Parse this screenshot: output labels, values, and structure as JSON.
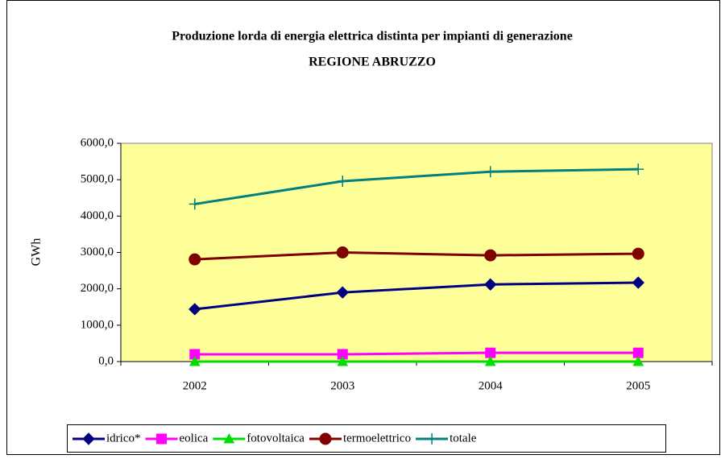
{
  "chart_data": {
    "type": "line",
    "title": "Produzione lorda di energia elettrica distinta per impianti di generazione",
    "subtitle": "REGIONE ABRUZZO",
    "y_label": "GWh",
    "categories": [
      "2002",
      "2003",
      "2004",
      "2005"
    ],
    "series": [
      {
        "name": "idrico*",
        "color": "#000080",
        "marker": "diamond",
        "values": [
          1440,
          1900,
          2120,
          2170
        ]
      },
      {
        "name": "eolica",
        "color": "#ff00ff",
        "marker": "square",
        "values": [
          200,
          200,
          240,
          240
        ]
      },
      {
        "name": "fotovoltaica",
        "color": "#00dd00",
        "marker": "triangle",
        "values": [
          0,
          0,
          0,
          0
        ]
      },
      {
        "name": "termoelettrico",
        "color": "#800000",
        "marker": "circle",
        "values": [
          2810,
          3000,
          2920,
          2965
        ]
      },
      {
        "name": "totale",
        "color": "#008080",
        "marker": "plus",
        "values": [
          4330,
          4960,
          5220,
          5290
        ]
      }
    ],
    "ylim": [
      0,
      6000
    ],
    "yticks": [
      {
        "value": 0,
        "label": "0,0"
      },
      {
        "value": 1000,
        "label": "1000,0"
      },
      {
        "value": 2000,
        "label": "2000,0"
      },
      {
        "value": 3000,
        "label": "3000,0"
      },
      {
        "value": 4000,
        "label": "4000,0"
      },
      {
        "value": 5000,
        "label": "5000,0"
      },
      {
        "value": 6000,
        "label": "6000,0"
      }
    ],
    "grid": false,
    "legend": "bottom"
  }
}
